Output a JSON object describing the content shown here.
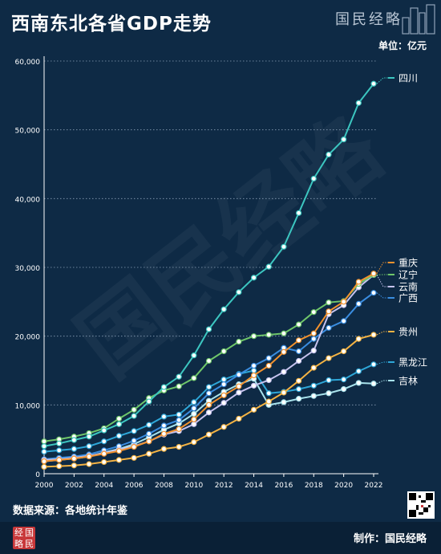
{
  "header": {
    "title": "西南东北各省GDP走势",
    "brand": "国民经略"
  },
  "unit_label": "单位：亿元",
  "watermark": "国民经略",
  "footer": {
    "source": "数据来源：各地统计年鉴",
    "seal_text": "经略国民",
    "maker": "制作：国民经略"
  },
  "colors": {
    "background": "#0e2a45",
    "grid": "#ffffff",
    "text": "#ffffff"
  },
  "chart_data": {
    "type": "line",
    "title": "西南东北各省GDP走势",
    "xlabel": "",
    "ylabel": "单位：亿元",
    "x": [
      2000,
      2001,
      2002,
      2003,
      2004,
      2005,
      2006,
      2007,
      2008,
      2009,
      2010,
      2011,
      2012,
      2013,
      2014,
      2015,
      2016,
      2017,
      2018,
      2019,
      2020,
      2021,
      2022
    ],
    "x_ticks": [
      "2000",
      "2002",
      "2004",
      "2006",
      "2008",
      "2010",
      "2012",
      "2014",
      "2016",
      "2018",
      "2020",
      "2022"
    ],
    "ylim": [
      0,
      60000
    ],
    "y_ticks": [
      "0",
      "10,000",
      "20,000",
      "30,000",
      "40,000",
      "50,000",
      "60,000"
    ],
    "y_tick_values": [
      0,
      10000,
      20000,
      30000,
      40000,
      50000,
      60000
    ],
    "grid": "horizontal dotted",
    "legend": "right, labels at line ends",
    "series": [
      {
        "name": "四川",
        "color": "#3cc6c0",
        "values": [
          4000,
          4400,
          4900,
          5400,
          6300,
          7200,
          8400,
          10500,
          12600,
          14100,
          17200,
          21000,
          23900,
          26400,
          28500,
          30100,
          33000,
          37900,
          42900,
          46400,
          48600,
          53900,
          56700
        ]
      },
      {
        "name": "重庆",
        "color": "#f2922e",
        "values": [
          1800,
          2000,
          2200,
          2500,
          2900,
          3300,
          3900,
          4700,
          5800,
          6500,
          7900,
          10000,
          11400,
          12700,
          14300,
          15700,
          17700,
          19400,
          20400,
          23600,
          25000,
          27900,
          29100
        ]
      },
      {
        "name": "辽宁",
        "color": "#6fc66a",
        "values": [
          4700,
          5000,
          5400,
          5900,
          6600,
          8000,
          9300,
          11000,
          12100,
          12700,
          13900,
          16400,
          17800,
          19200,
          20000,
          20200,
          20400,
          21700,
          23500,
          24900,
          25100,
          27600,
          28900
        ]
      },
      {
        "name": "云南",
        "color": "#c6c3ee",
        "values": [
          2000,
          2100,
          2300,
          2600,
          3000,
          3500,
          4000,
          4700,
          5700,
          6200,
          7200,
          8900,
          10300,
          11800,
          12800,
          13600,
          14800,
          16400,
          17900,
          23200,
          24500,
          27100,
          28900
        ]
      },
      {
        "name": "广西",
        "color": "#3a8de0",
        "values": [
          2100,
          2300,
          2500,
          2800,
          3400,
          4000,
          4800,
          5800,
          7000,
          7800,
          9500,
          11700,
          13000,
          14400,
          15700,
          16800,
          18300,
          17800,
          19600,
          21200,
          22200,
          24700,
          26300
        ]
      },
      {
        "name": "贵州",
        "color": "#f4b343",
        "values": [
          1000,
          1100,
          1200,
          1400,
          1700,
          2000,
          2300,
          2900,
          3600,
          3900,
          4600,
          5700,
          6800,
          8000,
          9300,
          10500,
          11800,
          13500,
          15400,
          16800,
          17800,
          19600,
          20200
        ]
      },
      {
        "name": "黑龙江",
        "color": "#2ea7d8",
        "values": [
          3200,
          3400,
          3600,
          4000,
          4700,
          5500,
          6200,
          7100,
          8300,
          8600,
          10400,
          12600,
          13700,
          14500,
          15000,
          11700,
          11900,
          12300,
          12800,
          13600,
          13700,
          14900,
          15900
        ]
      },
      {
        "name": "吉林",
        "color": "#a9e3ec",
        "values": [
          1800,
          2000,
          2200,
          2500,
          3100,
          3600,
          4300,
          5300,
          6400,
          7300,
          8700,
          10600,
          11900,
          13000,
          13800,
          10000,
          10400,
          10900,
          11300,
          11700,
          12300,
          13200,
          13100
        ]
      }
    ]
  }
}
